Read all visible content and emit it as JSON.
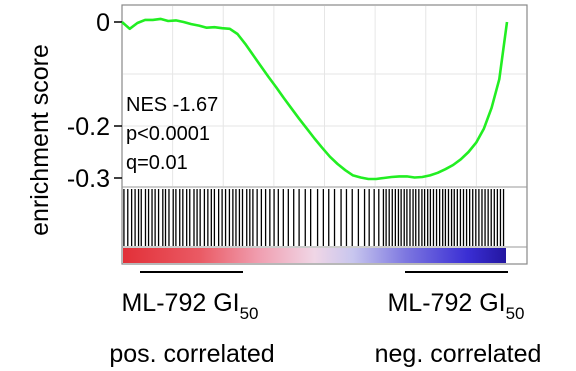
{
  "chart_data": {
    "type": "line",
    "ylabel": "enrichment score",
    "y_ticks": [
      {
        "value": 0,
        "label": "0"
      },
      {
        "value": -0.2,
        "label": "-0.2"
      },
      {
        "value": -0.3,
        "label": "-0.3"
      }
    ],
    "ylim": [
      -0.32,
      0.02
    ],
    "x": [
      0,
      2,
      4,
      6,
      8,
      10,
      12,
      14,
      16,
      18,
      20,
      22,
      24,
      26,
      28,
      30,
      32,
      34,
      36,
      38,
      40,
      42,
      44,
      46,
      48,
      50,
      52,
      54,
      56,
      58,
      60,
      62,
      64,
      66,
      68,
      70,
      72,
      74,
      76,
      78,
      80,
      82,
      84,
      86,
      88,
      90,
      92,
      94,
      96,
      98,
      100
    ],
    "series": [
      {
        "color": "#22ee22",
        "values": [
          0.0,
          -0.013,
          -0.002,
          0.004,
          0.004,
          0.006,
          0.002,
          0.003,
          0.0,
          -0.004,
          -0.007,
          -0.011,
          -0.01,
          -0.012,
          -0.013,
          -0.023,
          -0.042,
          -0.063,
          -0.084,
          -0.105,
          -0.125,
          -0.146,
          -0.166,
          -0.186,
          -0.205,
          -0.224,
          -0.242,
          -0.259,
          -0.273,
          -0.285,
          -0.295,
          -0.299,
          -0.302,
          -0.302,
          -0.3,
          -0.298,
          -0.297,
          -0.297,
          -0.299,
          -0.298,
          -0.295,
          -0.29,
          -0.283,
          -0.275,
          -0.264,
          -0.25,
          -0.232,
          -0.205,
          -0.165,
          -0.11,
          0.0
        ]
      }
    ],
    "annotations": {
      "nes": "NES -1.67",
      "p": "p<0.0001",
      "q": "q=0.01"
    },
    "hits": [
      0.5,
      1.5,
      2.5,
      3.4,
      4.3,
      5.0,
      6.1,
      6.9,
      7.8,
      8.6,
      9.5,
      10.6,
      11.3,
      12.2,
      13.3,
      14.0,
      15.0,
      15.8,
      16.8,
      17.6,
      18.7,
      19.5,
      20.3,
      21.4,
      22.3,
      23.2,
      24.0,
      25.1,
      26.0,
      26.9,
      27.9,
      28.8,
      29.6,
      30.5,
      31.3,
      32.4,
      33.2,
      34.0,
      35.1,
      36.2,
      37.3,
      38.4,
      39.5,
      40.6,
      41.9,
      43.2,
      44.6,
      46.0,
      47.6,
      49.0,
      50.8,
      52.3,
      53.7,
      55.2,
      56.9,
      58.3,
      59.8,
      61.4,
      63.0,
      64.2,
      65.5,
      66.7,
      67.9,
      68.6,
      69.4,
      70.2,
      71.0,
      71.8,
      72.5,
      73.3,
      74.0,
      74.8,
      75.6,
      76.3,
      77.1,
      77.9,
      78.6,
      79.4,
      80.1,
      80.9,
      81.7,
      82.5,
      83.3,
      84.0,
      84.8,
      85.6,
      86.3,
      87.1,
      87.9,
      88.7,
      89.5,
      90.3,
      91.1,
      91.9,
      92.7,
      93.5,
      94.3,
      95.1,
      95.9,
      96.7,
      97.5,
      98.3,
      99.1
    ],
    "grid": true
  },
  "captions": {
    "left": {
      "line1": "ML-792 GI",
      "sub": "50",
      "line2": "pos. correlated"
    },
    "right": {
      "line1": "ML-792 GI",
      "sub": "50",
      "line2": "neg. correlated"
    }
  },
  "colors": {
    "curve": "#22ee22",
    "gradient": [
      "#e8343a",
      "#ee7a86",
      "#f2c2d8",
      "#d6d2f0",
      "#9490e6",
      "#3a2dd6",
      "#2a1aa6"
    ]
  }
}
